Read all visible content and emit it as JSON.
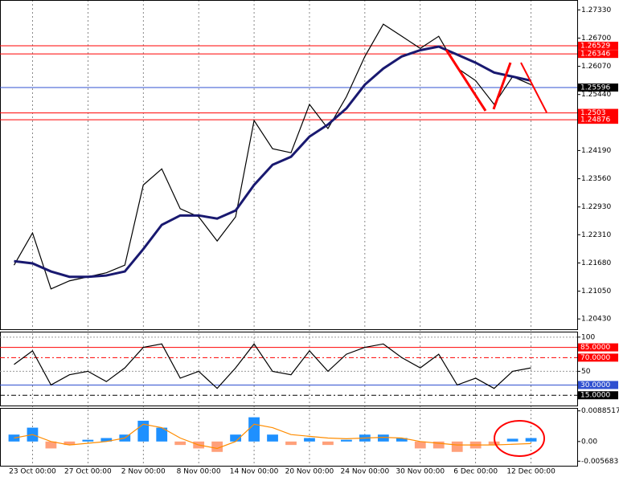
{
  "chart_data": [
    {
      "type": "line",
      "series": [
        {
          "name": "Price",
          "color": "#000000",
          "values": [
            1.2163,
            1.2235,
            1.211,
            1.2128,
            1.2137,
            1.2146,
            1.2163,
            1.2342,
            1.2378,
            1.2289,
            1.2271,
            1.2217,
            1.2271,
            1.2486,
            1.2423,
            1.2414,
            1.2522,
            1.2468,
            1.2539,
            1.2629,
            1.2701,
            1.2674,
            1.2647,
            1.2674,
            1.2603,
            1.2575,
            1.2522,
            1.2584,
            1.2566,
            null,
            null
          ]
        },
        {
          "name": "MA",
          "color": "#191970",
          "values": [
            1.2172,
            1.2167,
            1.2149,
            1.2137,
            1.2137,
            1.214,
            1.2149,
            1.2199,
            1.2253,
            1.2274,
            1.2274,
            1.2267,
            1.2285,
            1.2342,
            1.2387,
            1.2405,
            1.245,
            1.2477,
            1.2513,
            1.2566,
            1.2602,
            1.2629,
            1.2643,
            1.2651,
            1.2633,
            1.2615,
            1.2593,
            1.2584,
            1.2575,
            null,
            null
          ]
        }
      ],
      "ylim": [
        1.202,
        1.2755
      ],
      "yticks": [
        {
          "value": 1.2733,
          "label": "1.27330"
        },
        {
          "value": 1.267,
          "label": "1.26700"
        },
        {
          "value": 1.2607,
          "label": "1.26070"
        },
        {
          "value": 1.2544,
          "label": "1.25440"
        },
        {
          "value": 1.2419,
          "label": "1.24190"
        },
        {
          "value": 1.2356,
          "label": "1.23560"
        },
        {
          "value": 1.2293,
          "label": "1.22930"
        },
        {
          "value": 1.2231,
          "label": "1.22310"
        },
        {
          "value": 1.2168,
          "label": "1.21680"
        },
        {
          "value": 1.2105,
          "label": "1.21050"
        },
        {
          "value": 1.2043,
          "label": "1.20430"
        }
      ],
      "levels": [
        {
          "value": 1.26529,
          "color": "#ff0000"
        },
        {
          "value": 1.26346,
          "color": "#ff0000"
        },
        {
          "value": 1.25596,
          "color": "#3050d0"
        },
        {
          "value": 1.2503,
          "color": "#ff0000"
        },
        {
          "value": 1.24876,
          "color": "#ff0000"
        }
      ]
    },
    {
      "type": "line",
      "series": [
        {
          "name": "Oscillator",
          "color": "#000000",
          "values": [
            60,
            80,
            30,
            45,
            50,
            35,
            55,
            85,
            90,
            40,
            50,
            25,
            55,
            90,
            50,
            45,
            80,
            50,
            75,
            85,
            90,
            70,
            55,
            75,
            30,
            40,
            25,
            50,
            55,
            null,
            null
          ]
        }
      ],
      "ylim": [
        0,
        108
      ],
      "yticks": [
        100,
        50
      ],
      "levels": [
        {
          "value": 85,
          "label": "85.0000",
          "color": "#ff0000"
        },
        {
          "value": 70,
          "label": "70.0000",
          "color": "#ff0000"
        },
        {
          "value": 30,
          "label": "30.0000",
          "color": "#3050d0"
        },
        {
          "value": 15,
          "label": "15.0000",
          "color": "#000000"
        }
      ]
    },
    {
      "type": "bar",
      "categories": [
        null,
        "23 Oct 00:00",
        null,
        null,
        "27 Oct 00:00",
        null,
        null,
        "2 Nov 00:00",
        null,
        null,
        "8 Nov 00:00",
        null,
        null,
        "14 Nov 00:00",
        null,
        null,
        "20 Nov 00:00",
        null,
        null,
        "24 Nov 00:00",
        null,
        null,
        "30 Nov 00:00",
        null,
        null,
        "6 Dec 00:00",
        null,
        null,
        "12 Dec 00:00",
        null,
        null
      ],
      "values": [
        0.002,
        0.004,
        -0.002,
        -0.001,
        0.0005,
        0.001,
        0.002,
        0.006,
        0.004,
        -0.001,
        -0.002,
        -0.003,
        0.002,
        0.007,
        0.002,
        -0.001,
        0.001,
        -0.001,
        0.0005,
        0.002,
        0.002,
        0.001,
        -0.002,
        -0.002,
        -0.003,
        -0.002,
        -0.001,
        0.0008,
        0.001,
        null,
        null
      ],
      "colors": {
        "positive": "#1e90ff",
        "negative": "#ffa07a"
      },
      "series": [
        {
          "name": "Signal",
          "color": "#ff8c00",
          "values": [
            0.001,
            0.002,
            0.0,
            -0.001,
            -0.0005,
            0,
            0.001,
            0.005,
            0.004,
            0.001,
            -0.001,
            -0.002,
            0,
            0.005,
            0.004,
            0.002,
            0.0015,
            0.001,
            0.0008,
            0.001,
            0.0012,
            0.001,
            0,
            -0.0005,
            -0.001,
            -0.001,
            -0.001,
            -0.0008,
            -0.0006,
            null,
            null
          ]
        }
      ],
      "ylim": [
        -0.007,
        0.0097
      ],
      "yticks": [
        0.0088517,
        {
          "value": 0,
          "label": "0.00"
        },
        -0.005683
      ]
    }
  ]
}
